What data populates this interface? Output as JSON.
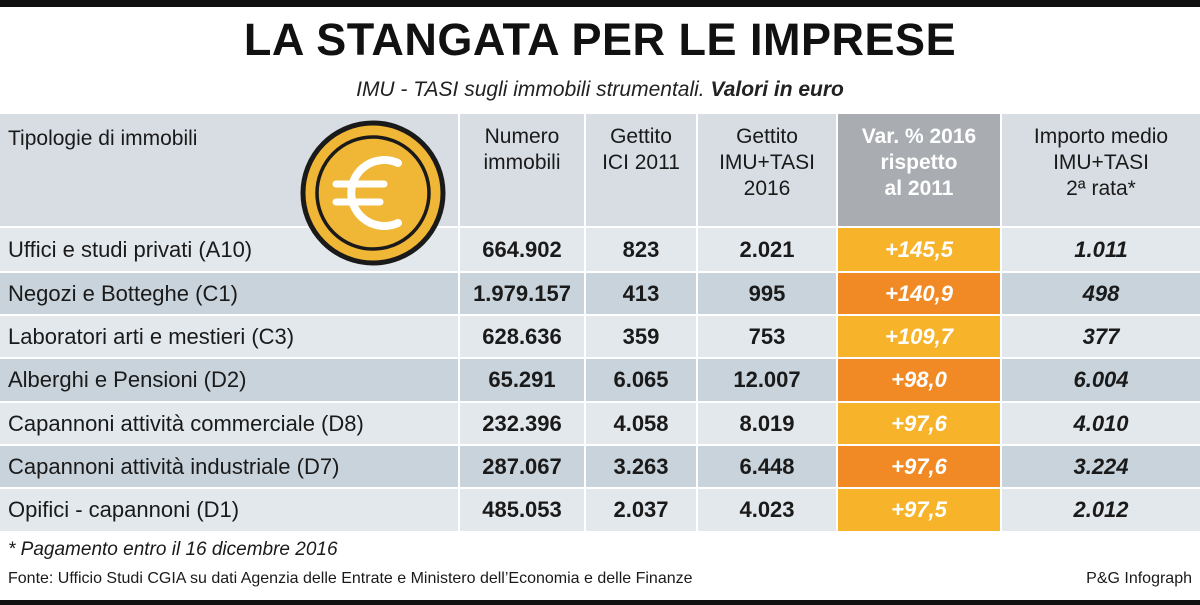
{
  "title": "LA STANGATA PER LE IMPRESE",
  "subtitle": {
    "normal": "IMU - TASI sugli immobili strumentali.",
    "bold": "Valori in euro"
  },
  "headers": {
    "tipologie": "Tipologie di immobili",
    "numero": [
      "Numero",
      "immobili"
    ],
    "ici": [
      "Gettito",
      "ICI 2011"
    ],
    "imu": [
      "Gettito",
      "IMU+TASI",
      "2016"
    ],
    "var": [
      "Var. % 2016",
      "rispetto",
      "al 2011"
    ],
    "importo": [
      "Importo medio",
      "IMU+TASI",
      "2ª rata*"
    ]
  },
  "rows": [
    {
      "tipologia": "Uffici e studi privati (A10)",
      "numero": "664.902",
      "ici": "823",
      "imu": "2.021",
      "var": "+145,5",
      "importo": "1.011",
      "var_color": "yellow"
    },
    {
      "tipologia": "Negozi e Botteghe (C1)",
      "numero": "1.979.157",
      "ici": "413",
      "imu": "995",
      "var": "+140,9",
      "importo": "498",
      "var_color": "orange"
    },
    {
      "tipologia": "Laboratori arti e mestieri (C3)",
      "numero": "628.636",
      "ici": "359",
      "imu": "753",
      "var": "+109,7",
      "importo": "377",
      "var_color": "yellow"
    },
    {
      "tipologia": "Alberghi e Pensioni (D2)",
      "numero": "65.291",
      "ici": "6.065",
      "imu": "12.007",
      "var": "+98,0",
      "importo": "6.004",
      "var_color": "orange"
    },
    {
      "tipologia": "Capannoni attività commerciale (D8)",
      "numero": "232.396",
      "ici": "4.058",
      "imu": "8.019",
      "var": "+97,6",
      "importo": "4.010",
      "var_color": "yellow"
    },
    {
      "tipologia": "Capannoni attività industriale (D7)",
      "numero": "287.067",
      "ici": "3.263",
      "imu": "6.448",
      "var": "+97,6",
      "importo": "3.224",
      "var_color": "orange"
    },
    {
      "tipologia": "Opifici - capannoni (D1)",
      "numero": "485.053",
      "ici": "2.037",
      "imu": "4.023",
      "var": "+97,5",
      "importo": "2.012",
      "var_color": "yellow"
    }
  ],
  "footnote": "* Pagamento entro il 16 dicembre 2016",
  "source": "Fonte: Ufficio Studi CGIA su dati Agenzia delle Entrate e Ministero dell’Economia e delle Finanze",
  "credit": "P&G Infograph",
  "icon": "euro-coin-icon",
  "colors": {
    "orange": "#f18a24",
    "yellow": "#f7b42b",
    "header_gray": "#d7dde3",
    "highlight_header": "#a9adb2",
    "row_light": "#e3e8ec",
    "row_dark": "#c8d3db",
    "coin_gold": "#f0b636"
  }
}
